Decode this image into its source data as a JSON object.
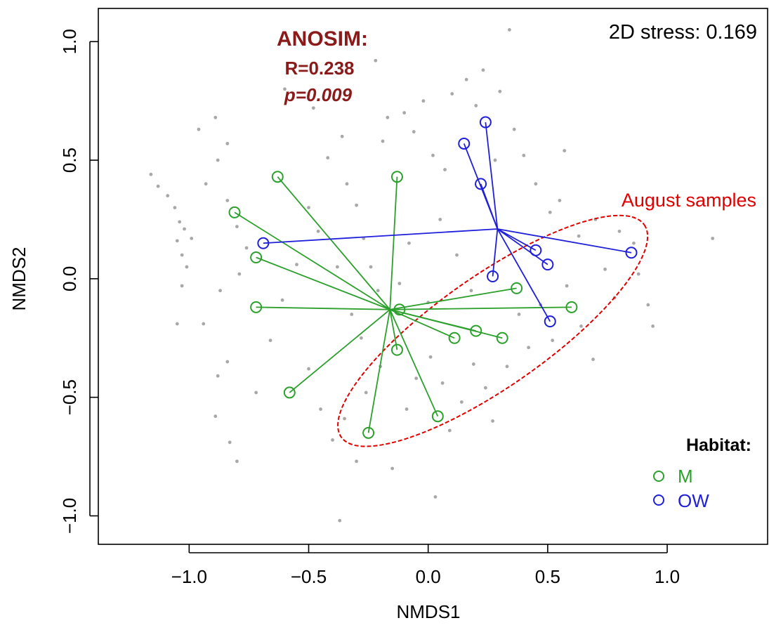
{
  "chart_data": {
    "type": "scatter",
    "xlabel": "NMDS1",
    "ylabel": "NMDS2",
    "xlim": [
      -1.38,
      1.42
    ],
    "ylim": [
      -1.12,
      1.14
    ],
    "xticks": [
      -1.0,
      -0.5,
      0.0,
      0.5,
      1.0
    ],
    "xtick_labels": [
      "−1.0",
      "−0.5",
      "0.0",
      "0.5",
      "1.0"
    ],
    "yticks": [
      -1.0,
      -0.5,
      0.0,
      0.5,
      1.0
    ],
    "ytick_labels": [
      "−1.0",
      "−0.5",
      "0.0",
      "0.5",
      "1.0"
    ],
    "stress_text": "2D stress: 0.169",
    "anosim": {
      "title": "ANOSIM:",
      "r_text": "R=0.238",
      "p_text": "p=0.009",
      "color": "#8b1a1a"
    },
    "legend": {
      "title": "Habitat:",
      "placement": "bottom-right",
      "items": [
        {
          "label": "M",
          "color": "#2ca02c"
        },
        {
          "label": "OW",
          "color": "#1f1fdb"
        }
      ]
    },
    "highlight": {
      "label": "August samples",
      "color": "#e00000",
      "center": [
        0.27,
        -0.22
      ],
      "semi_axes": [
        0.86,
        0.26
      ],
      "angle_deg": 35
    },
    "series": [
      {
        "name": "M",
        "color": "#2ca02c",
        "centroid": [
          -0.16,
          -0.13
        ],
        "points": [
          [
            -0.63,
            0.43
          ],
          [
            -0.13,
            0.43
          ],
          [
            -0.81,
            0.28
          ],
          [
            -0.72,
            0.09
          ],
          [
            -0.72,
            -0.12
          ],
          [
            -0.12,
            -0.13
          ],
          [
            0.37,
            -0.04
          ],
          [
            0.6,
            -0.12
          ],
          [
            0.2,
            -0.22
          ],
          [
            0.11,
            -0.25
          ],
          [
            0.31,
            -0.25
          ],
          [
            -0.13,
            -0.3
          ],
          [
            -0.58,
            -0.48
          ],
          [
            -0.25,
            -0.65
          ],
          [
            0.04,
            -0.58
          ]
        ]
      },
      {
        "name": "OW",
        "color": "#1f1fdb",
        "centroid": [
          0.29,
          0.21
        ],
        "points": [
          [
            0.24,
            0.66
          ],
          [
            0.15,
            0.57
          ],
          [
            0.22,
            0.4
          ],
          [
            -0.69,
            0.15
          ],
          [
            0.45,
            0.12
          ],
          [
            0.85,
            0.11
          ],
          [
            0.5,
            0.06
          ],
          [
            0.27,
            0.01
          ],
          [
            0.51,
            -0.18
          ]
        ]
      },
      {
        "color": "#a8a8a8",
        "background": true,
        "points": [
          [
            0.34,
            1.05
          ],
          [
            -1.16,
            0.44
          ],
          [
            -1.13,
            0.39
          ],
          [
            -1.09,
            0.35
          ],
          [
            -1.06,
            0.3
          ],
          [
            -1.04,
            0.24
          ],
          [
            -1.02,
            0.21
          ],
          [
            -0.99,
            0.17
          ],
          [
            -1.05,
            0.16
          ],
          [
            -1.03,
            0.1
          ],
          [
            -1.01,
            0.05
          ],
          [
            -1.03,
            -0.03
          ],
          [
            -1.05,
            -0.19
          ],
          [
            -0.96,
            0.63
          ],
          [
            -0.89,
            0.68
          ],
          [
            -0.84,
            0.57
          ],
          [
            -0.88,
            0.5
          ],
          [
            -0.93,
            0.4
          ],
          [
            -0.84,
            0.33
          ],
          [
            -0.8,
            0.22
          ],
          [
            -0.76,
            0.13
          ],
          [
            -0.79,
            0.02
          ],
          [
            -0.87,
            -0.05
          ],
          [
            -0.94,
            -0.19
          ],
          [
            -0.88,
            -0.41
          ],
          [
            -0.84,
            -0.35
          ],
          [
            -0.89,
            -0.58
          ],
          [
            -0.83,
            -0.69
          ],
          [
            -0.8,
            -0.77
          ],
          [
            -0.72,
            -0.48
          ],
          [
            -0.66,
            -0.26
          ],
          [
            -0.61,
            -0.09
          ],
          [
            -0.55,
            0.06
          ],
          [
            -0.5,
            0.3
          ],
          [
            -0.46,
            0.2
          ],
          [
            -0.42,
            0.51
          ],
          [
            -0.36,
            0.6
          ],
          [
            -0.34,
            0.4
          ],
          [
            -0.3,
            0.31
          ],
          [
            -0.27,
            0.17
          ],
          [
            -0.24,
            0.05
          ],
          [
            -0.21,
            -0.05
          ],
          [
            -0.19,
            0.58
          ],
          [
            -0.17,
            0.68
          ],
          [
            -0.1,
            0.7
          ],
          [
            -0.06,
            0.62
          ],
          [
            -0.02,
            0.75
          ],
          [
            0.02,
            0.52
          ],
          [
            0.07,
            0.46
          ],
          [
            0.1,
            0.78
          ],
          [
            0.16,
            0.84
          ],
          [
            0.2,
            0.73
          ],
          [
            0.23,
            0.88
          ],
          [
            0.3,
            0.79
          ],
          [
            0.36,
            0.63
          ],
          [
            0.4,
            0.52
          ],
          [
            0.45,
            0.4
          ],
          [
            0.51,
            0.28
          ],
          [
            0.55,
            0.33
          ],
          [
            0.57,
            0.54
          ],
          [
            0.63,
            0.18
          ],
          [
            0.7,
            0.25
          ],
          [
            0.74,
            0.04
          ],
          [
            0.78,
            -0.08
          ],
          [
            0.8,
            0.2
          ],
          [
            0.86,
            0.15
          ],
          [
            0.88,
            0.02
          ],
          [
            0.92,
            -0.11
          ],
          [
            0.94,
            -0.2
          ],
          [
            1.19,
            0.17
          ],
          [
            -0.5,
            -0.38
          ],
          [
            -0.45,
            -0.55
          ],
          [
            -0.4,
            -0.68
          ],
          [
            -0.35,
            -0.59
          ],
          [
            -0.3,
            -0.77
          ],
          [
            -0.26,
            -0.48
          ],
          [
            -0.2,
            -0.37
          ],
          [
            -0.15,
            -0.8
          ],
          [
            -0.09,
            -0.55
          ],
          [
            -0.05,
            -0.42
          ],
          [
            0.01,
            -0.33
          ],
          [
            0.06,
            -0.44
          ],
          [
            0.09,
            -0.64
          ],
          [
            0.14,
            -0.52
          ],
          [
            0.19,
            -0.36
          ],
          [
            0.24,
            -0.46
          ],
          [
            0.27,
            -0.6
          ],
          [
            0.33,
            -0.37
          ],
          [
            0.38,
            -0.15
          ],
          [
            0.42,
            -0.29
          ],
          [
            0.47,
            -0.11
          ],
          [
            0.52,
            -0.26
          ],
          [
            0.58,
            -0.03
          ],
          [
            0.64,
            -0.2
          ],
          [
            0.69,
            -0.34
          ],
          [
            -0.37,
            -1.02
          ],
          [
            0.03,
            -0.92
          ],
          [
            -0.48,
            0.72
          ],
          [
            -0.6,
            0.8
          ],
          [
            -0.22,
            0.92
          ],
          [
            -0.32,
            -0.15
          ],
          [
            -0.38,
            0.05
          ],
          [
            -0.08,
            0.15
          ],
          [
            0.05,
            0.25
          ],
          [
            0.12,
            0.1
          ],
          [
            0.18,
            -0.05
          ],
          [
            -0.12,
            -0.02
          ],
          [
            0.0,
            -0.1
          ],
          [
            -0.28,
            -0.25
          ],
          [
            0.28,
            0.5
          ]
        ]
      }
    ]
  }
}
